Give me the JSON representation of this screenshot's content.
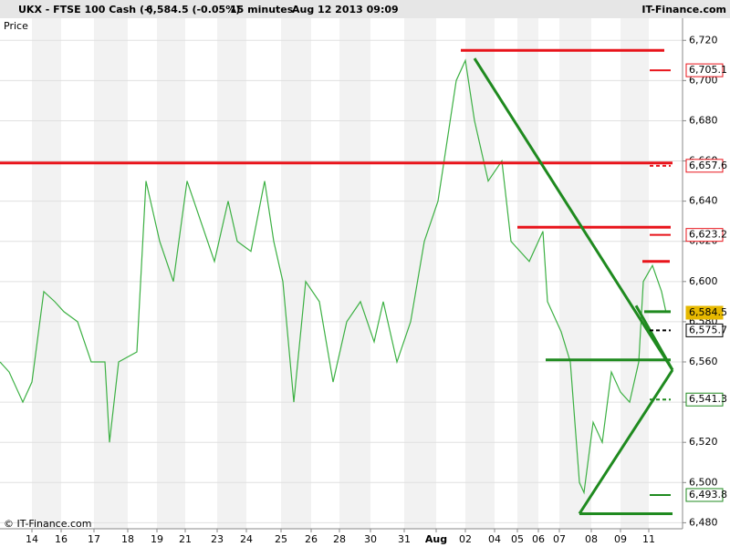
{
  "header": {
    "symbol": "UKX - FTSE 100 Cash (-)",
    "quote": "6,584.5 (-0.05%)",
    "interval": "15 minutes",
    "datetime": "Aug 12 2013 09:09",
    "brand": "IT-Finance.com"
  },
  "chart_data": {
    "type": "line",
    "y_axis_label": "Price",
    "watermark": "© IT-Finance.com",
    "xlim": [
      0,
      748
    ],
    "ylim": [
      6477,
      6731
    ],
    "xticks": [
      {
        "value": 35,
        "label": "14"
      },
      {
        "value": 67,
        "label": "16"
      },
      {
        "value": 103,
        "label": "17"
      },
      {
        "value": 140,
        "label": "18"
      },
      {
        "value": 172,
        "label": "19"
      },
      {
        "value": 203,
        "label": "21"
      },
      {
        "value": 238,
        "label": "23"
      },
      {
        "value": 270,
        "label": "24"
      },
      {
        "value": 308,
        "label": "25"
      },
      {
        "value": 341,
        "label": "26"
      },
      {
        "value": 372,
        "label": "28"
      },
      {
        "value": 406,
        "label": "30"
      },
      {
        "value": 443,
        "label": "31"
      },
      {
        "value": 478,
        "label": "Aug"
      },
      {
        "value": 510,
        "label": "02"
      },
      {
        "value": 542,
        "label": "04"
      },
      {
        "value": 567,
        "label": "05"
      },
      {
        "value": 590,
        "label": "06"
      },
      {
        "value": 613,
        "label": "07"
      },
      {
        "value": 648,
        "label": "08"
      },
      {
        "value": 680,
        "label": "09"
      },
      {
        "value": 711,
        "label": "11"
      }
    ],
    "yticks": [
      {
        "value": 6480,
        "label": "6,480"
      },
      {
        "value": 6500,
        "label": "6,500"
      },
      {
        "value": 6520,
        "label": "6,520"
      },
      {
        "value": 6540,
        "label": "6,540"
      },
      {
        "value": 6560,
        "label": "6,560"
      },
      {
        "value": 6580,
        "label": "6,580"
      },
      {
        "value": 6600,
        "label": "6,600"
      },
      {
        "value": 6620,
        "label": "6,620"
      },
      {
        "value": 6640,
        "label": "6,640"
      },
      {
        "value": 6660,
        "label": "6,660"
      },
      {
        "value": 6680,
        "label": "6,680"
      },
      {
        "value": 6700,
        "label": "6,700"
      },
      {
        "value": 6720,
        "label": "6,720"
      }
    ],
    "grid": true,
    "series": [
      {
        "name": "UKX",
        "color": "#3cb043",
        "x": [
          0,
          10,
          25,
          35,
          48,
          60,
          70,
          85,
          100,
          115,
          120,
          130,
          150,
          160,
          175,
          190,
          205,
          220,
          235,
          250,
          260,
          275,
          290,
          300,
          310,
          322,
          335,
          350,
          365,
          380,
          395,
          410,
          420,
          435,
          450,
          465,
          480,
          500,
          510,
          520,
          535,
          550,
          560,
          570,
          580,
          595,
          600,
          615,
          625,
          635,
          640,
          650,
          660,
          670,
          680,
          690,
          700,
          705,
          715,
          725,
          730
        ],
        "values": [
          6560,
          6555,
          6540,
          6550,
          6595,
          6590,
          6585,
          6580,
          6560,
          6560,
          6520,
          6560,
          6565,
          6650,
          6620,
          6600,
          6650,
          6630,
          6610,
          6640,
          6620,
          6615,
          6650,
          6620,
          6600,
          6540,
          6600,
          6590,
          6550,
          6580,
          6590,
          6570,
          6590,
          6560,
          6580,
          6620,
          6640,
          6700,
          6710,
          6680,
          6650,
          6660,
          6620,
          6615,
          6610,
          6625,
          6590,
          6575,
          6560,
          6500,
          6495,
          6530,
          6520,
          6555,
          6545,
          6540,
          6560,
          6600,
          6608,
          6595,
          6584.5
        ]
      }
    ],
    "drawings": [
      {
        "color": "#e8141b",
        "x": [
          505,
          728
        ],
        "y": [
          6715,
          6715
        ]
      },
      {
        "color": "#e8141b",
        "x": [
          0,
          737
        ],
        "y": [
          6659,
          6659
        ]
      },
      {
        "color": "#e8141b",
        "x": [
          567,
          735
        ],
        "y": [
          6627,
          6627
        ]
      },
      {
        "color": "#e8141b",
        "x": [
          704,
          734
        ],
        "y": [
          6610,
          6610
        ]
      },
      {
        "color": "#1f8a1f",
        "x": [
          598,
          735
        ],
        "y": [
          6561,
          6561
        ]
      },
      {
        "color": "#1f8a1f",
        "x": [
          635,
          737
        ],
        "y": [
          6484.5,
          6484.5
        ]
      },
      {
        "color": "#1f8a1f",
        "x": [
          706,
          735
        ],
        "y": [
          6585,
          6585
        ]
      },
      {
        "color": "#1f8a1f",
        "x": [
          520,
          737
        ],
        "y": [
          6711,
          6556
        ]
      },
      {
        "color": "#1f8a1f",
        "x": [
          635,
          737
        ],
        "y": [
          6484.5,
          6556
        ]
      },
      {
        "color": "#1f8a1f",
        "x": [
          697,
          737
        ],
        "y": [
          6588,
          6556
        ]
      }
    ],
    "price_markers": [
      {
        "value": 6705.1,
        "label": "6,705.1",
        "color": "#e8141b",
        "style": "solid"
      },
      {
        "value": 6657.6,
        "label": "6,657.6",
        "color": "#e8141b",
        "style": "dashed"
      },
      {
        "value": 6623.2,
        "label": "6,623.2",
        "color": "#e8141b",
        "style": "solid"
      },
      {
        "value": 6584.5,
        "label": "6,584.5",
        "color": "#e6b800",
        "style": "filled"
      },
      {
        "value": 6575.7,
        "label": "6,575.7",
        "color": "#000000",
        "style": "dashed"
      },
      {
        "value": 6541.3,
        "label": "6,541.3",
        "color": "#1f8a1f",
        "style": "dashed"
      },
      {
        "value": 6493.8,
        "label": "6,493.8",
        "color": "#1f8a1f",
        "style": "solid"
      }
    ]
  }
}
